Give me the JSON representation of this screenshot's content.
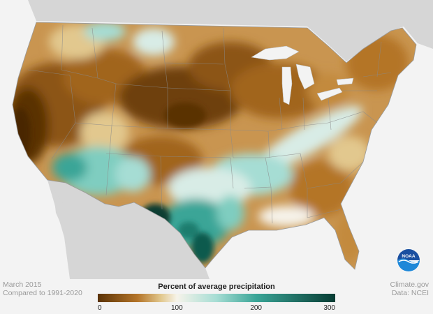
{
  "caption": {
    "period": "March 2015",
    "baseline": "Compared to 1991-2020",
    "source": "Climate.gov",
    "data_credit": "Data: NCEI"
  },
  "legend": {
    "title": "Percent of average precipitation",
    "ticks": [
      "0",
      "100",
      "200",
      "300"
    ],
    "stops": [
      {
        "value": 0,
        "color": "#5a3205"
      },
      {
        "value": 50,
        "color": "#b47428"
      },
      {
        "value": 80,
        "color": "#e2c88e"
      },
      {
        "value": 100,
        "color": "#f6f3ea"
      },
      {
        "value": 150,
        "color": "#a6ddd4"
      },
      {
        "value": 200,
        "color": "#3aa597"
      },
      {
        "value": 300,
        "color": "#073c33"
      }
    ]
  },
  "logo": {
    "text": "NOAA",
    "color": "#1a4fa0"
  },
  "colors": {
    "land_outside": "#d6d6d6",
    "water": "#f3f3f3",
    "state_border": "#8a8a8a"
  }
}
